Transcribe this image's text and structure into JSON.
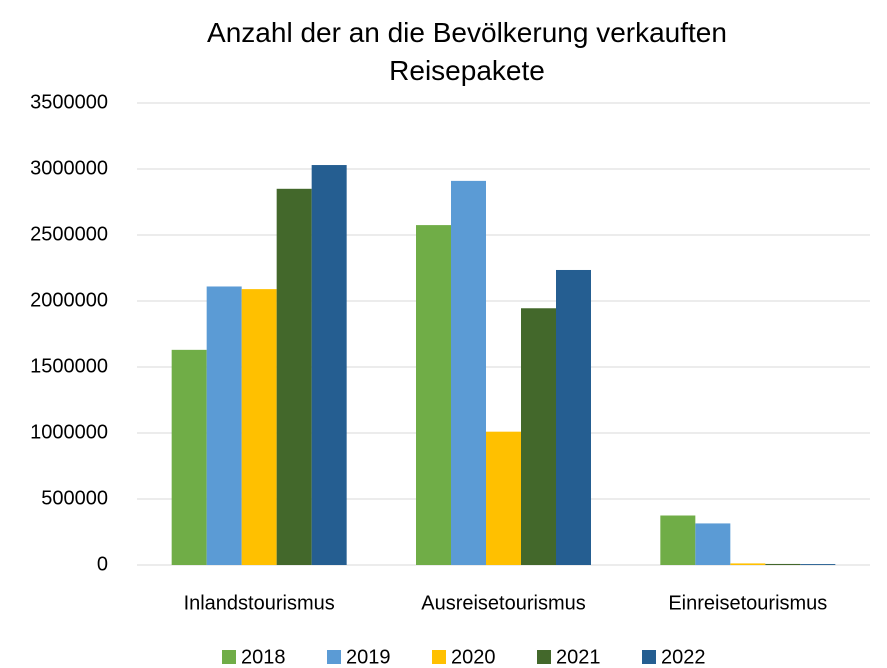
{
  "chart_data": {
    "type": "bar",
    "title": "Anzahl der an die Bevölkerung verkauften Reisepakete",
    "categories": [
      "Inlandstourismus",
      "Ausreisetourismus",
      "Einreisetourismus"
    ],
    "series": [
      {
        "name": "2018",
        "color": "#70ad47",
        "values": [
          1630000,
          2575000,
          375000
        ]
      },
      {
        "name": "2019",
        "color": "#5b9bd5",
        "values": [
          2110000,
          2910000,
          315000
        ]
      },
      {
        "name": "2020",
        "color": "#ffc000",
        "values": [
          2090000,
          1010000,
          12000
        ]
      },
      {
        "name": "2021",
        "color": "#43682b",
        "values": [
          2850000,
          1945000,
          8000
        ]
      },
      {
        "name": "2022",
        "color": "#255e91",
        "values": [
          3030000,
          2235000,
          7000
        ]
      }
    ],
    "ylim": [
      0,
      3500000
    ],
    "yticks": [
      0,
      500000,
      1000000,
      1500000,
      2000000,
      2500000,
      3000000,
      3500000
    ],
    "grid": true,
    "legend": "bottom"
  }
}
